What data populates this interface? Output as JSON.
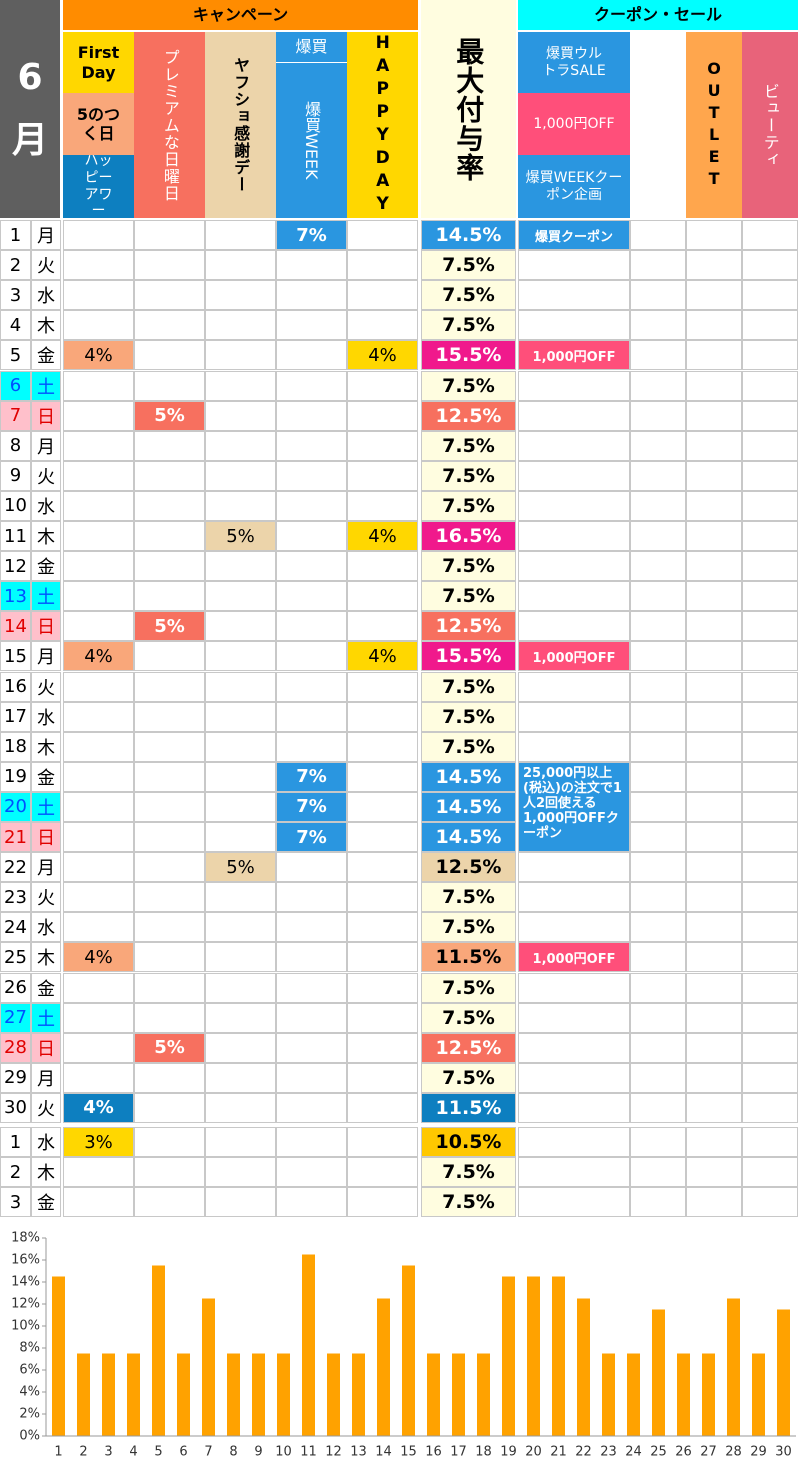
{
  "header": {
    "month": "6",
    "month_unit": "月",
    "campaign": "キャンペーン",
    "coupon_sale": "クーポン・セール",
    "first_day": "First Day",
    "gonotsuku": "5のつく日",
    "happy_hour": "ハッピーアワー",
    "premium": "プレミアムな日曜日",
    "kansha": "ヤフショ感謝デー",
    "bakugai": "爆買",
    "bakugai_week": "爆買WEEK",
    "happy_day": "HAPPYDAY",
    "max_rate": "最大付与率",
    "ultra_sale": "爆買ウルトラSALE",
    "off": "1,000円OFF",
    "week_coupon": "爆買WEEKクーポン企画",
    "outlet": "OUTLET",
    "beauty": "ビューティ"
  },
  "rows": [
    {
      "day": "1",
      "weekday": "月",
      "cells": [
        null,
        null,
        null,
        {
          "text": "7%",
          "color": "#2a96e0"
        },
        null,
        {
          "text": "14.5%",
          "color": "#2a96e0"
        },
        {
          "text": "爆買クーポン",
          "color": "#2a96e0"
        }
      ]
    },
    {
      "day": "2",
      "weekday": "火",
      "cells": [
        null,
        null,
        null,
        null,
        null,
        {
          "text": "7.5%",
          "color": "#fffde0"
        }
      ]
    },
    {
      "day": "3",
      "weekday": "水",
      "cells": [
        null,
        null,
        null,
        null,
        null,
        {
          "text": "7.5%",
          "color": "#fffde0"
        }
      ]
    },
    {
      "day": "4",
      "weekday": "木",
      "cells": [
        null,
        null,
        null,
        null,
        null,
        {
          "text": "7.5%",
          "color": "#fffde0"
        }
      ]
    },
    {
      "day": "5",
      "weekday": "金",
      "cells": [
        {
          "text": "4%",
          "color": "#f9a77a"
        },
        null,
        null,
        null,
        {
          "text": "4%",
          "color": "#ffd700"
        },
        {
          "text": "15.5%",
          "color": "#f0198c"
        },
        {
          "text": "1,000円OFF",
          "color": "#ff4f7a"
        }
      ]
    },
    {
      "day": "6",
      "weekday": "土",
      "color": "#00ffff",
      "text_color": "#0050ff",
      "cells": [
        null,
        null,
        null,
        null,
        null,
        {
          "text": "7.5%",
          "color": "#fffde0"
        }
      ]
    },
    {
      "day": "7",
      "weekday": "日",
      "color": "#ffc0cb",
      "text_color": "#e00000",
      "cells": [
        null,
        {
          "text": "5%",
          "color": "#f7705f"
        },
        null,
        null,
        null,
        {
          "text": "12.5%",
          "color": "#f7705f"
        }
      ]
    },
    {
      "day": "8",
      "weekday": "月",
      "cells": [
        null,
        null,
        null,
        null,
        null,
        {
          "text": "7.5%",
          "color": "#fffde0"
        }
      ]
    },
    {
      "day": "9",
      "weekday": "火",
      "cells": [
        null,
        null,
        null,
        null,
        null,
        {
          "text": "7.5%",
          "color": "#fffde0"
        }
      ]
    },
    {
      "day": "10",
      "weekday": "水",
      "cells": [
        null,
        null,
        null,
        null,
        null,
        {
          "text": "7.5%",
          "color": "#fffde0"
        }
      ]
    },
    {
      "day": "11",
      "weekday": "木",
      "cells": [
        null,
        null,
        {
          "text": "5%",
          "color": "#ecd4aa"
        },
        null,
        {
          "text": "4%",
          "color": "#ffd700"
        },
        {
          "text": "16.5%",
          "color": "#f0198c"
        }
      ]
    },
    {
      "day": "12",
      "weekday": "金",
      "cells": [
        null,
        null,
        null,
        null,
        null,
        {
          "text": "7.5%",
          "color": "#fffde0"
        }
      ]
    },
    {
      "day": "13",
      "weekday": "土",
      "color": "#00ffff",
      "text_color": "#0050ff",
      "cells": [
        null,
        null,
        null,
        null,
        null,
        {
          "text": "7.5%",
          "color": "#fffde0"
        }
      ]
    },
    {
      "day": "14",
      "weekday": "日",
      "color": "#ffc0cb",
      "text_color": "#e00000",
      "cells": [
        null,
        {
          "text": "5%",
          "color": "#f7705f"
        },
        null,
        null,
        null,
        {
          "text": "12.5%",
          "color": "#f7705f"
        }
      ]
    },
    {
      "day": "15",
      "weekday": "月",
      "cells": [
        {
          "text": "4%",
          "color": "#f9a77a"
        },
        null,
        null,
        null,
        {
          "text": "4%",
          "color": "#ffd700"
        },
        {
          "text": "15.5%",
          "color": "#f0198c"
        },
        {
          "text": "1,000円OFF",
          "color": "#ff4f7a"
        }
      ]
    },
    {
      "day": "16",
      "weekday": "火",
      "cells": [
        null,
        null,
        null,
        null,
        null,
        {
          "text": "7.5%",
          "color": "#fffde0"
        }
      ]
    },
    {
      "day": "17",
      "weekday": "水",
      "cells": [
        null,
        null,
        null,
        null,
        null,
        {
          "text": "7.5%",
          "color": "#fffde0"
        }
      ]
    },
    {
      "day": "18",
      "weekday": "木",
      "cells": [
        null,
        null,
        null,
        null,
        null,
        {
          "text": "7.5%",
          "color": "#fffde0"
        }
      ]
    },
    {
      "day": "19",
      "weekday": "金",
      "cells": [
        null,
        null,
        null,
        {
          "text": "7%",
          "color": "#2a96e0"
        },
        null,
        {
          "text": "14.5%",
          "color": "#2a96e0"
        },
        {
          "text": "25,000円以上(税込)の注文で1人2回使える1,000円OFFクーポン",
          "color": "#2a96e0",
          "rowspan": 3
        }
      ]
    },
    {
      "day": "20",
      "weekday": "土",
      "color": "#00ffff",
      "text_color": "#0050ff",
      "cells": [
        null,
        null,
        null,
        {
          "text": "7%",
          "color": "#2a96e0"
        },
        null,
        {
          "text": "14.5%",
          "color": "#2a96e0"
        }
      ]
    },
    {
      "day": "21",
      "weekday": "日",
      "color": "#ffc0cb",
      "text_color": "#e00000",
      "cells": [
        null,
        null,
        null,
        {
          "text": "7%",
          "color": "#2a96e0"
        },
        null,
        {
          "text": "14.5%",
          "color": "#2a96e0"
        }
      ]
    },
    {
      "day": "22",
      "weekday": "月",
      "cells": [
        null,
        null,
        {
          "text": "5%",
          "color": "#ecd4aa"
        },
        null,
        null,
        {
          "text": "12.5%",
          "color": "#ecd4aa"
        }
      ]
    },
    {
      "day": "23",
      "weekday": "火",
      "cells": [
        null,
        null,
        null,
        null,
        null,
        {
          "text": "7.5%",
          "color": "#fffde0"
        }
      ]
    },
    {
      "day": "24",
      "weekday": "水",
      "cells": [
        null,
        null,
        null,
        null,
        null,
        {
          "text": "7.5%",
          "color": "#fffde0"
        }
      ]
    },
    {
      "day": "25",
      "weekday": "木",
      "cells": [
        {
          "text": "4%",
          "color": "#f9a77a"
        },
        null,
        null,
        null,
        null,
        {
          "text": "11.5%",
          "color": "#f9a77a"
        },
        {
          "text": "1,000円OFF",
          "color": "#ff4f7a"
        }
      ]
    },
    {
      "day": "26",
      "weekday": "金",
      "cells": [
        null,
        null,
        null,
        null,
        null,
        {
          "text": "7.5%",
          "color": "#fffde0"
        }
      ]
    },
    {
      "day": "27",
      "weekday": "土",
      "color": "#00ffff",
      "text_color": "#0050ff",
      "cells": [
        null,
        null,
        null,
        null,
        null,
        {
          "text": "7.5%",
          "color": "#fffde0"
        }
      ]
    },
    {
      "day": "28",
      "weekday": "日",
      "color": "#ffc0cb",
      "text_color": "#e00000",
      "cells": [
        null,
        {
          "text": "5%",
          "color": "#f7705f"
        },
        null,
        null,
        null,
        {
          "text": "12.5%",
          "color": "#f7705f"
        }
      ]
    },
    {
      "day": "29",
      "weekday": "月",
      "cells": [
        null,
        null,
        null,
        null,
        null,
        {
          "text": "7.5%",
          "color": "#fffde0"
        }
      ]
    },
    {
      "day": "30",
      "weekday": "火",
      "cells": [
        {
          "text": "4%",
          "color": "#0d7fc0"
        },
        null,
        null,
        null,
        null,
        {
          "text": "11.5%",
          "color": "#0d7fc0"
        }
      ]
    }
  ],
  "next_rows": [
    {
      "day": "1",
      "weekday": "水",
      "cells": [
        {
          "text": "3%",
          "color": "#ffd700"
        },
        null,
        null,
        null,
        null,
        {
          "text": "10.5%",
          "color": "#ffc800"
        }
      ]
    },
    {
      "day": "2",
      "weekday": "木",
      "cells": [
        null,
        null,
        null,
        null,
        null,
        {
          "text": "7.5%",
          "color": "#fffde0"
        }
      ]
    },
    {
      "day": "3",
      "weekday": "金",
      "cells": [
        null,
        null,
        null,
        null,
        null,
        {
          "text": "7.5%",
          "color": "#fffde0"
        }
      ]
    }
  ],
  "chart_data": {
    "type": "bar",
    "color": "#ffa200",
    "categories": [
      "1",
      "2",
      "3",
      "4",
      "5",
      "6",
      "7",
      "8",
      "9",
      "10",
      "11",
      "12",
      "13",
      "14",
      "15",
      "16",
      "17",
      "18",
      "19",
      "20",
      "21",
      "22",
      "23",
      "24",
      "25",
      "26",
      "27",
      "28",
      "29",
      "30"
    ],
    "values": [
      14.5,
      7.5,
      7.5,
      7.5,
      15.5,
      7.5,
      12.5,
      7.5,
      7.5,
      7.5,
      16.5,
      7.5,
      7.5,
      12.5,
      15.5,
      7.5,
      7.5,
      7.5,
      14.5,
      14.5,
      14.5,
      12.5,
      7.5,
      7.5,
      11.5,
      7.5,
      7.5,
      12.5,
      7.5,
      11.5
    ],
    "ylim": [
      0,
      18
    ],
    "yticks": [
      {
        "value": 0,
        "label": "0%"
      },
      {
        "value": 2,
        "label": "2%"
      },
      {
        "value": 4,
        "label": "4%"
      },
      {
        "value": 6,
        "label": "6%"
      },
      {
        "value": 8,
        "label": "8%"
      },
      {
        "value": 10,
        "label": "10%"
      },
      {
        "value": 12,
        "label": "12%"
      },
      {
        "value": 14,
        "label": "14%"
      },
      {
        "value": 16,
        "label": "16%"
      },
      {
        "value": 18,
        "label": "18%"
      }
    ]
  }
}
